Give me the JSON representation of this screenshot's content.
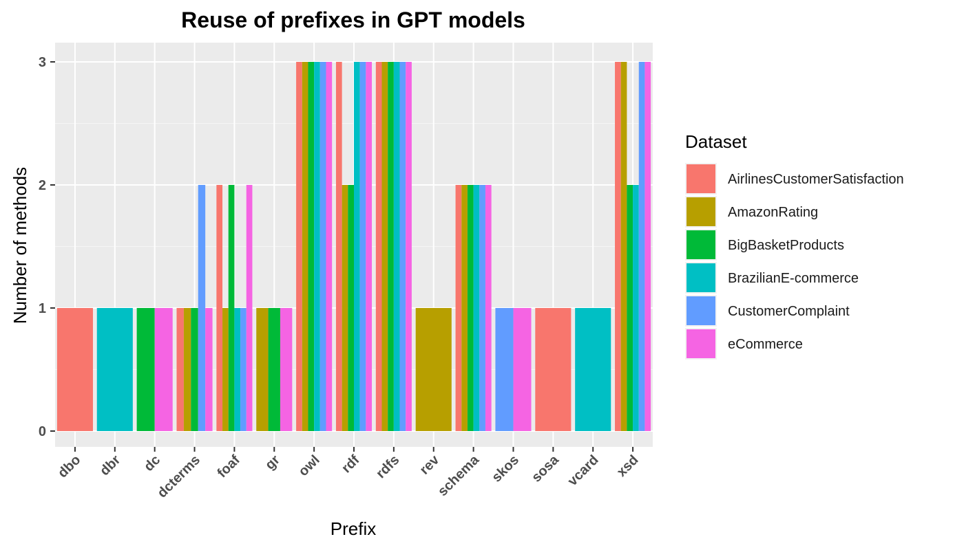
{
  "chart_data": {
    "type": "bar",
    "title": "Reuse of prefixes in GPT models",
    "xlabel": "Prefix",
    "ylabel": "Number of methods",
    "ylim": [
      0,
      3
    ],
    "yticks": [
      0,
      1,
      2,
      3
    ],
    "grid": true,
    "legend": {
      "title": "Dataset",
      "position": "right"
    },
    "categories": [
      "dbo",
      "dbr",
      "dc",
      "dcterms",
      "foaf",
      "gr",
      "owl",
      "rdf",
      "rdfs",
      "rev",
      "schema",
      "skos",
      "sosa",
      "vcard",
      "xsd"
    ],
    "series": [
      {
        "name": "AirlinesCustomerSatisfaction",
        "color": "#F8766D",
        "values": [
          1,
          null,
          null,
          1,
          2,
          null,
          3,
          3,
          3,
          null,
          2,
          null,
          1,
          null,
          3
        ]
      },
      {
        "name": "AmazonRating",
        "color": "#B79F00",
        "values": [
          null,
          null,
          null,
          1,
          1,
          1,
          3,
          2,
          3,
          1,
          2,
          null,
          null,
          null,
          3
        ]
      },
      {
        "name": "BigBasketProducts",
        "color": "#00BA38",
        "values": [
          null,
          null,
          1,
          1,
          2,
          1,
          3,
          2,
          3,
          null,
          2,
          null,
          null,
          null,
          2
        ]
      },
      {
        "name": "BrazilianE-commerce",
        "color": "#00BFC4",
        "values": [
          null,
          1,
          null,
          null,
          1,
          null,
          3,
          3,
          3,
          null,
          2,
          null,
          null,
          1,
          2
        ]
      },
      {
        "name": "CustomerComplaint",
        "color": "#619CFF",
        "values": [
          null,
          null,
          null,
          2,
          1,
          null,
          3,
          3,
          3,
          null,
          2,
          1,
          null,
          null,
          3
        ]
      },
      {
        "name": "eCommerce",
        "color": "#F564E3",
        "values": [
          null,
          null,
          1,
          1,
          2,
          1,
          3,
          3,
          3,
          null,
          2,
          1,
          null,
          null,
          3
        ]
      }
    ]
  }
}
